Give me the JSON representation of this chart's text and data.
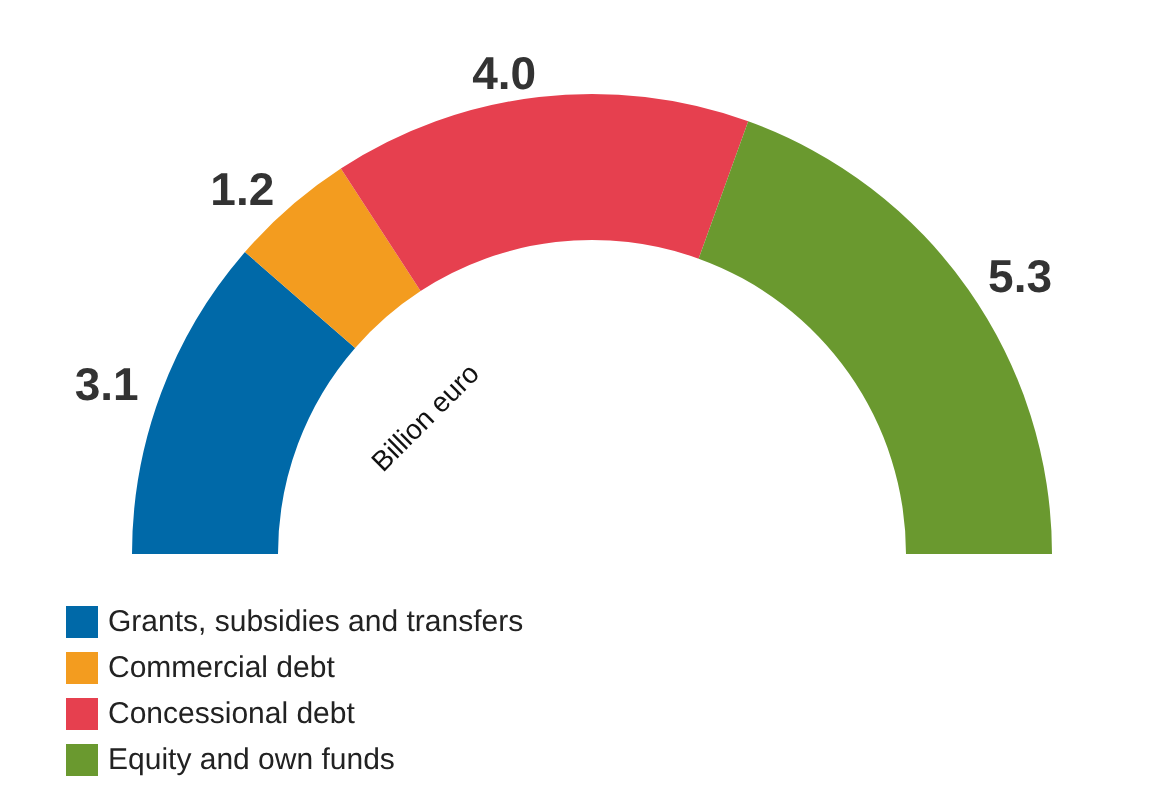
{
  "chart_data": {
    "type": "donut",
    "categories": [
      "Grants, subsidies and transfers",
      "Commercial debt",
      "Concessional debt",
      "Equity and own funds"
    ],
    "values": [
      3.1,
      1.2,
      4.0,
      5.3
    ],
    "value_labels": [
      "3.1",
      "1.2",
      "4.0",
      "5.3"
    ],
    "colors": [
      "#0069a8",
      "#f39c1f",
      "#e6404f",
      "#6a992f"
    ],
    "annotations": [
      "Billion euro"
    ],
    "legend": "bottom left"
  }
}
